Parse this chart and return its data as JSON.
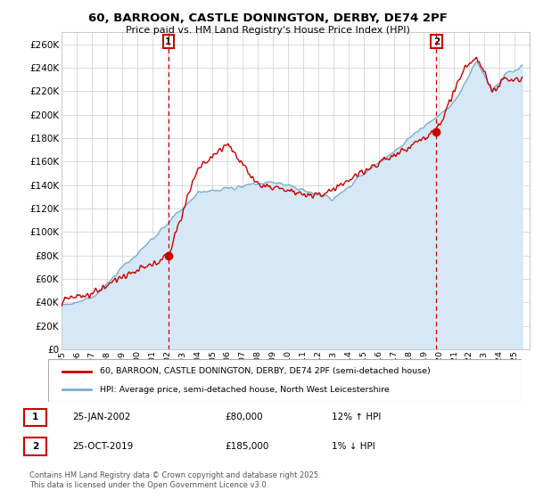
{
  "title": "60, BARROON, CASTLE DONINGTON, DERBY, DE74 2PF",
  "subtitle": "Price paid vs. HM Land Registry's House Price Index (HPI)",
  "ylim": [
    0,
    270000
  ],
  "yticks": [
    0,
    20000,
    40000,
    60000,
    80000,
    100000,
    120000,
    140000,
    160000,
    180000,
    200000,
    220000,
    240000,
    260000
  ],
  "ytick_labels": [
    "£0",
    "£20K",
    "£40K",
    "£60K",
    "£80K",
    "£100K",
    "£120K",
    "£140K",
    "£160K",
    "£180K",
    "£200K",
    "£220K",
    "£240K",
    "£260K"
  ],
  "xlim_start": 1995.0,
  "xlim_end": 2026.0,
  "sale1_year": 2002.07,
  "sale1_price": 80000,
  "sale1_label": "1",
  "sale2_year": 2019.82,
  "sale2_price": 185000,
  "sale2_label": "2",
  "property_color": "#cc0000",
  "hpi_color": "#7aadcf",
  "hpi_fill_color": "#d6e8f5",
  "legend1_text": "60, BARROON, CASTLE DONINGTON, DERBY, DE74 2PF (semi-detached house)",
  "legend2_text": "HPI: Average price, semi-detached house, North West Leicestershire",
  "footer": "Contains HM Land Registry data © Crown copyright and database right 2025.\nThis data is licensed under the Open Government Licence v3.0.",
  "background_color": "#ffffff",
  "grid_color": "#cccccc"
}
